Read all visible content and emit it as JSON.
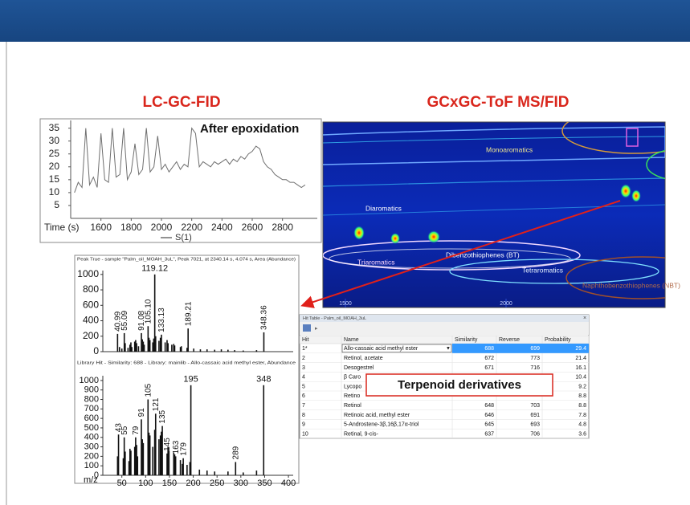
{
  "titles": {
    "left": "LC-GC-FID",
    "right": "GCxGC-ToF MS/FID"
  },
  "fid_chart": {
    "type": "line",
    "annotation": "After epoxidation",
    "xlabel": "Time (s)",
    "x": [
      1425,
      1450,
      1475,
      1500,
      1525,
      1550,
      1575,
      1600,
      1625,
      1650,
      1675,
      1700,
      1725,
      1750,
      1775,
      1800,
      1825,
      1850,
      1875,
      1900,
      1925,
      1950,
      1975,
      2000,
      2025,
      2050,
      2075,
      2100,
      2125,
      2150,
      2175,
      2200,
      2225,
      2250,
      2275,
      2300,
      2325,
      2350,
      2375,
      2400,
      2425,
      2450,
      2475,
      2500,
      2525,
      2550,
      2575,
      2600,
      2625,
      2650,
      2675,
      2700,
      2725,
      2750,
      2775,
      2800,
      2825,
      2850,
      2875,
      2900,
      2925,
      2950
    ],
    "series": [
      {
        "name": "S(1)",
        "color": "#6e6e6e",
        "values": [
          10,
          14,
          12,
          35,
          13,
          16,
          12,
          33,
          15,
          14,
          35,
          16,
          17,
          35,
          15,
          18,
          29,
          17,
          19,
          35,
          18,
          20,
          32,
          19,
          21,
          18,
          20,
          22,
          19,
          21,
          20,
          35,
          33,
          20,
          22,
          21,
          20,
          22,
          21,
          22,
          23,
          21,
          23,
          22,
          24,
          23,
          25,
          26,
          28,
          27,
          22,
          20,
          19,
          17,
          16,
          15,
          15,
          14,
          14,
          13,
          12,
          13
        ]
      }
    ],
    "xlim": [
      1400,
      3030
    ],
    "ylim": [
      0,
      38
    ],
    "xticks": [
      1600,
      1800,
      2000,
      2200,
      2400,
      2600,
      2800
    ],
    "yticks": [
      35,
      30,
      25,
      20,
      15,
      10,
      5
    ]
  },
  "mass_spectra": [
    {
      "type": "stem",
      "title": "Peak True - sample \"Palm_oil_MOAH_3uL\", Peak 7021, at 2340.14 s, 4.074 s, Area (Abundance)",
      "xlim": [
        10,
        410
      ],
      "ylim": [
        0,
        1050
      ],
      "yticks": [
        0,
        200,
        400,
        600,
        800,
        1000
      ],
      "color": "#111111",
      "peaks": {
        "mz": [
          40.99,
          55.09,
          91.08,
          105.1,
          119.12,
          133.13,
          189.21,
          348.36
        ],
        "mz_labels": [
          "40.99",
          "55.09",
          "91.08",
          "105.10",
          "119.12",
          "133.13",
          "189.21",
          "348.36"
        ],
        "values": [
          230,
          240,
          240,
          330,
          1000,
          220,
          300,
          250
        ]
      },
      "minor": {
        "mz": [
          45,
          50,
          57,
          63,
          67,
          69,
          71,
          77,
          79,
          81,
          85,
          93,
          95,
          97,
          107,
          109,
          115,
          117,
          121,
          128,
          131,
          141,
          145,
          147,
          155,
          159,
          161,
          173,
          175,
          187,
          201,
          215,
          229,
          245,
          259,
          273,
          287,
          305,
          333
        ],
        "values": [
          60,
          40,
          110,
          50,
          90,
          120,
          60,
          130,
          150,
          110,
          70,
          160,
          130,
          90,
          180,
          150,
          120,
          170,
          200,
          140,
          180,
          120,
          150,
          110,
          90,
          100,
          80,
          60,
          70,
          50,
          40,
          30,
          30,
          25,
          30,
          25,
          20,
          15,
          20
        ]
      }
    },
    {
      "type": "stem",
      "title": "Library Hit - Similarity: 688 - Library: mainlib - Allo-cassaic acid methyl ester, Abundance",
      "xlabel": "m/z",
      "xlim": [
        10,
        410
      ],
      "ylim": [
        0,
        1050
      ],
      "xticks": [
        50,
        100,
        150,
        200,
        250,
        300,
        350,
        400
      ],
      "yticks": [
        0,
        100,
        200,
        300,
        400,
        500,
        600,
        700,
        800,
        900,
        1000
      ],
      "color": "#111111",
      "peaks": {
        "mz": [
          43,
          55,
          79,
          91,
          105,
          121,
          135,
          145,
          163,
          179,
          195,
          289,
          348
        ],
        "values": [
          430,
          400,
          400,
          590,
          800,
          650,
          520,
          230,
          200,
          180,
          950,
          140,
          950
        ]
      },
      "minor": {
        "mz": [
          41,
          53,
          57,
          65,
          67,
          69,
          77,
          81,
          83,
          93,
          95,
          107,
          109,
          115,
          119,
          128,
          131,
          133,
          147,
          149,
          159,
          161,
          173,
          177,
          187,
          193,
          213,
          229,
          245,
          273,
          305,
          333
        ],
        "values": [
          200,
          180,
          250,
          150,
          280,
          260,
          300,
          320,
          200,
          380,
          340,
          450,
          420,
          300,
          480,
          380,
          420,
          460,
          300,
          260,
          240,
          220,
          160,
          120,
          110,
          140,
          60,
          50,
          40,
          40,
          30,
          50
        ]
      }
    }
  ],
  "gcxgc": {
    "regions": [
      "Monoaromatics",
      "Diaromatics",
      "Triaromatics",
      "Dibenzothiophenes (BT)",
      "Tetraromatics",
      "Naphthobenzothiophenes (NBT)"
    ],
    "xlim": [
      1430,
      2495
    ],
    "xticks": [
      1500,
      2000
    ]
  },
  "hit_table": {
    "title": "Hit Table - Palm_oil_MOAH_3uL",
    "columns": [
      "Hit",
      "Name",
      "Similarity",
      "Reverse",
      "Probability"
    ],
    "rows": [
      [
        "1*",
        "Allo-cassaic acid methyl ester",
        688,
        699,
        29.4
      ],
      [
        2,
        "Retinol, acetate",
        672,
        773,
        21.4
      ],
      [
        3,
        "Desogestrel",
        671,
        716,
        16.1
      ],
      [
        4,
        "β Caro",
        null,
        null,
        10.4
      ],
      [
        5,
        "Lycopo",
        null,
        null,
        9.2
      ],
      [
        6,
        "Retino",
        null,
        null,
        8.8
      ],
      [
        7,
        "Retinol",
        648,
        703,
        8.8
      ],
      [
        8,
        "Retinoic acid, methyl ester",
        646,
        691,
        7.8
      ],
      [
        9,
        "5-Androstene-3β,16β,17α-triol",
        645,
        693,
        4.8
      ],
      [
        10,
        "Retinal, 9-cis-",
        637,
        706,
        3.6
      ]
    ]
  },
  "callout": "Terpenoid derivatives"
}
